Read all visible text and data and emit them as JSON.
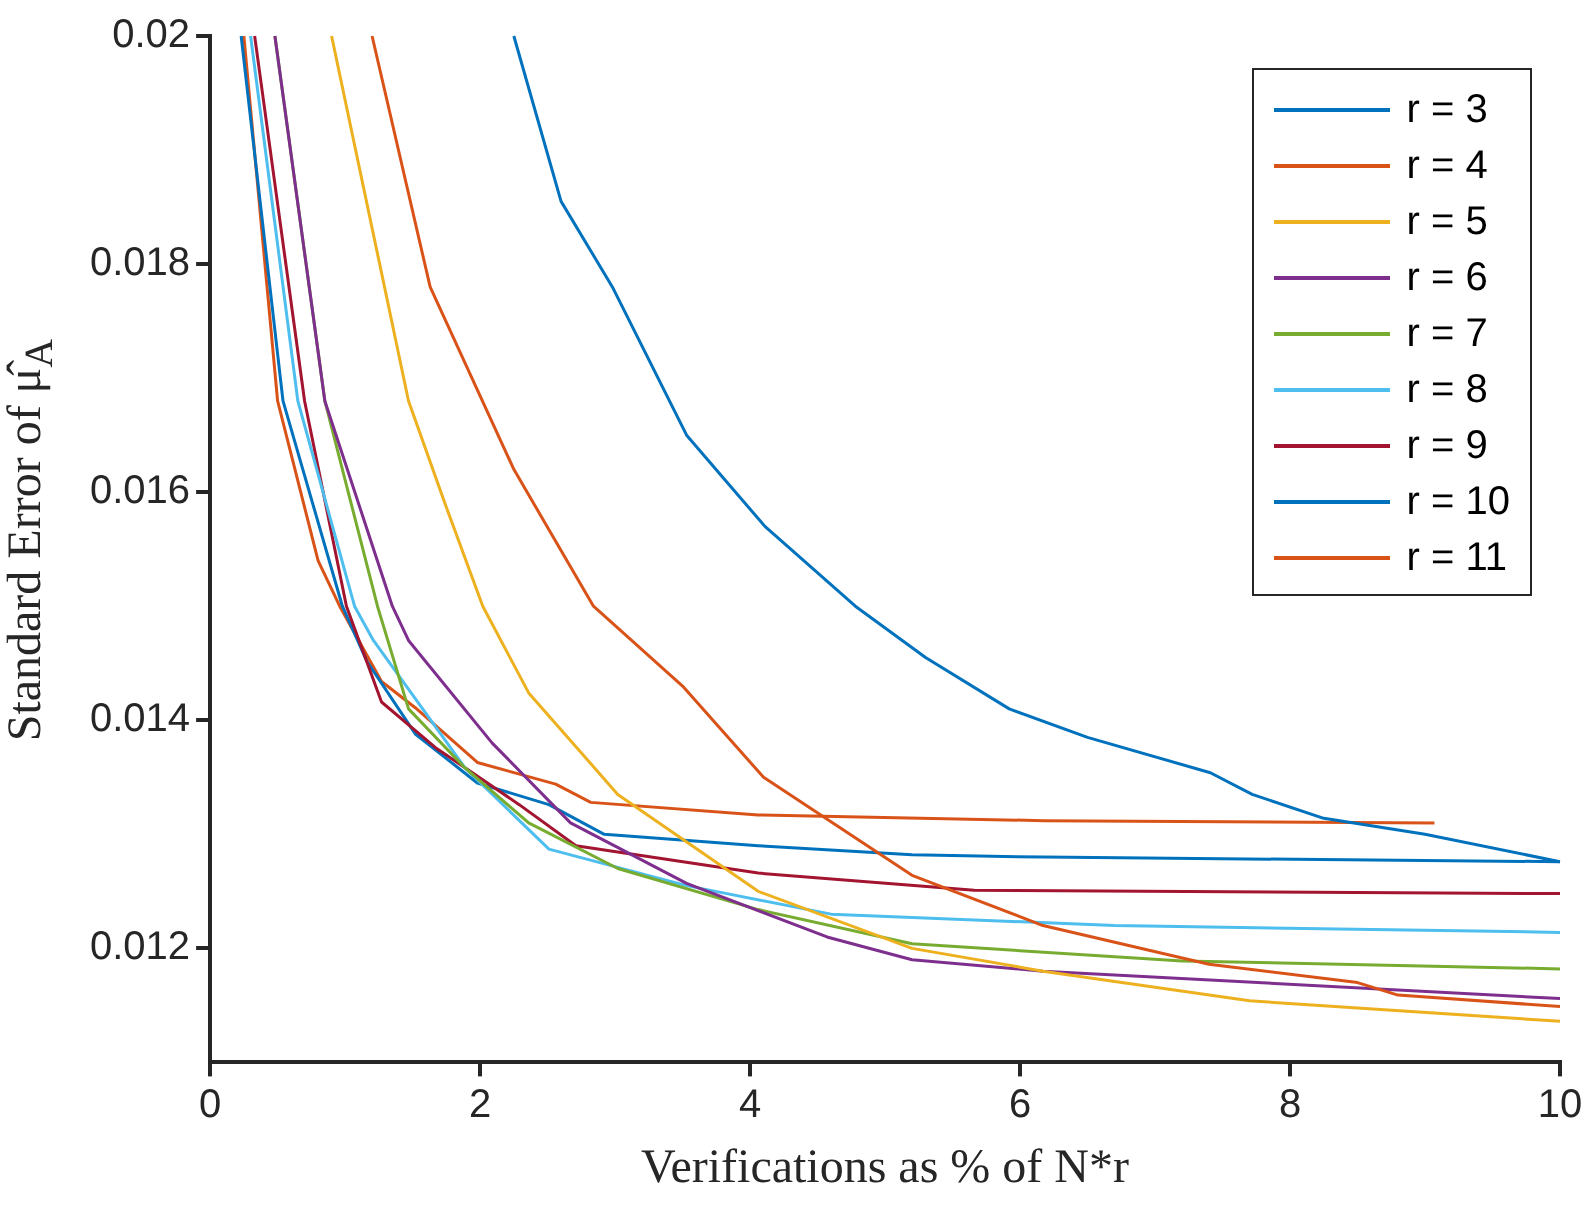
{
  "chart_data": {
    "type": "line",
    "xlabel": "Verifications as % of N*r",
    "ylabel": "Standard Error of μ̂$_{A}$",
    "xlim": [
      0,
      10
    ],
    "xticks": [
      0,
      2,
      4,
      6,
      8,
      10
    ],
    "ylim": [
      0.011,
      0.02
    ],
    "yticks": [
      0.012,
      0.014,
      0.016,
      0.018,
      0.02
    ],
    "grid": false,
    "legend": "top right",
    "marker": "none",
    "line_style": "solid",
    "series": [
      {
        "name": "r = 3",
        "color": "#0072bd",
        "x": [
          2.25,
          2.6,
          2.98,
          3.53,
          4.11,
          4.78,
          5.3,
          5.92,
          6.5,
          7.41,
          7.72,
          8.25,
          9,
          10
        ],
        "values": [
          0.02,
          0.01855,
          0.0178,
          0.0165,
          0.0157,
          0.015,
          0.01455,
          0.0141,
          0.01385,
          0.01354,
          0.01335,
          0.01314,
          0.013,
          0.01276
        ]
      },
      {
        "name": "r = 4",
        "color": "#d95319",
        "x": [
          1.2,
          1.63,
          2.25,
          2.84,
          3.5,
          4.1,
          5.2,
          6.17,
          7.4,
          8.5,
          8.8,
          10
        ],
        "values": [
          0.02,
          0.0178,
          0.0162,
          0.015,
          0.0143,
          0.0135,
          0.01264,
          0.0122,
          0.01186,
          0.0117,
          0.01159,
          0.01149
        ]
      },
      {
        "name": "r = 5",
        "color": "#edb120",
        "x": [
          0.9,
          1.47,
          1.74,
          2.02,
          2.36,
          3.02,
          4.06,
          5.2,
          6.17,
          7.7,
          10
        ],
        "values": [
          0.02,
          0.0168,
          0.0159,
          0.015,
          0.01424,
          0.01335,
          0.0125,
          0.012,
          0.0118,
          0.01154,
          0.01136
        ]
      },
      {
        "name": "r = 6",
        "color": "#7e2f8e",
        "x": [
          0.48,
          0.85,
          1.35,
          1.47,
          2.09,
          2.67,
          3.53,
          4.57,
          5.2,
          6.17,
          10
        ],
        "values": [
          0.02,
          0.0168,
          0.015,
          0.0147,
          0.0138,
          0.0131,
          0.01257,
          0.0121,
          0.0119,
          0.0118,
          0.01156
        ]
      },
      {
        "name": "r = 7",
        "color": "#77ac30",
        "x": [
          0.48,
          0.85,
          1.24,
          1.47,
          1.89,
          2.36,
          3.02,
          4.06,
          5.2,
          7.2,
          10
        ],
        "values": [
          0.02,
          0.0168,
          0.015,
          0.0141,
          0.01358,
          0.0131,
          0.0127,
          0.01234,
          0.01204,
          0.01189,
          0.01182
        ]
      },
      {
        "name": "r = 8",
        "color": "#4dbeee",
        "x": [
          0.3,
          0.65,
          1.07,
          1.21,
          1.89,
          2.51,
          3.53,
          4.6,
          6.7,
          10
        ],
        "values": [
          0.02,
          0.0168,
          0.015,
          0.0147,
          0.01358,
          0.01287,
          0.01255,
          0.0123,
          0.0122,
          0.01214
        ]
      },
      {
        "name": "r = 9",
        "color": "#a2142f",
        "x": [
          0.33,
          0.7,
          1.01,
          1.27,
          1.67,
          2.29,
          2.71,
          4.06,
          5.66,
          10
        ],
        "values": [
          0.02,
          0.0168,
          0.015,
          0.01416,
          0.01376,
          0.01326,
          0.0129,
          0.01266,
          0.01251,
          0.01248
        ]
      },
      {
        "name": "r = 10",
        "color": "#0072bd",
        "x": [
          0.23,
          0.54,
          0.98,
          1.16,
          1.52,
          1.98,
          2.51,
          2.92,
          4.06,
          5.2,
          6.17,
          10
        ],
        "values": [
          0.02,
          0.0168,
          0.015,
          0.01452,
          0.01388,
          0.01345,
          0.01326,
          0.013,
          0.0129,
          0.01282,
          0.0128,
          0.01276
        ]
      },
      {
        "name": "r = 11",
        "color": "#d95319",
        "x": [
          0.25,
          0.5,
          0.8,
          0.96,
          1.27,
          1.52,
          1.98,
          2.56,
          2.82,
          4.06,
          6.17,
          9.07
        ],
        "values": [
          0.02,
          0.0168,
          0.0154,
          0.015,
          0.01434,
          0.01411,
          0.01363,
          0.01344,
          0.01328,
          0.01317,
          0.01312,
          0.0131
        ]
      }
    ]
  }
}
